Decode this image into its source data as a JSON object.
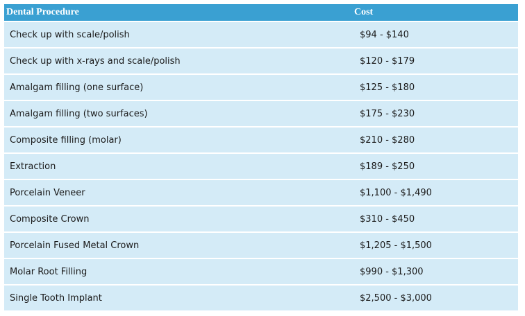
{
  "table": {
    "headers": [
      "Dental Procedure",
      "Cost"
    ],
    "rows": [
      {
        "procedure": "Check up with scale/polish",
        "cost": "$94 - $140"
      },
      {
        "procedure": "Check up with x-rays and scale/polish",
        "cost": "$120 - $179"
      },
      {
        "procedure": "Amalgam filling (one surface)",
        "cost": "$125 - $180"
      },
      {
        "procedure": "Amalgam filling (two surfaces)",
        "cost": "$175 - $230"
      },
      {
        "procedure": "Composite filling (molar)",
        "cost": "$210 - $280"
      },
      {
        "procedure": "Extraction",
        "cost": "$189 - $250"
      },
      {
        "procedure": "Porcelain Veneer",
        "cost": "$1,100 - $1,490"
      },
      {
        "procedure": "Composite Crown",
        "cost": "$310 - $450"
      },
      {
        "procedure": "Porcelain Fused Metal Crown",
        "cost": "$1,205 - $1,500"
      },
      {
        "procedure": "Molar Root Filling",
        "cost": "$990 - $1,300"
      },
      {
        "procedure": "Single Tooth Implant",
        "cost": "$2,500 - $3,000"
      }
    ]
  },
  "colors": {
    "header_bg": "#3aa0d2",
    "header_text": "#ffffff",
    "row_bg": "#d4ebf7",
    "row_separator": "#ffffff"
  }
}
